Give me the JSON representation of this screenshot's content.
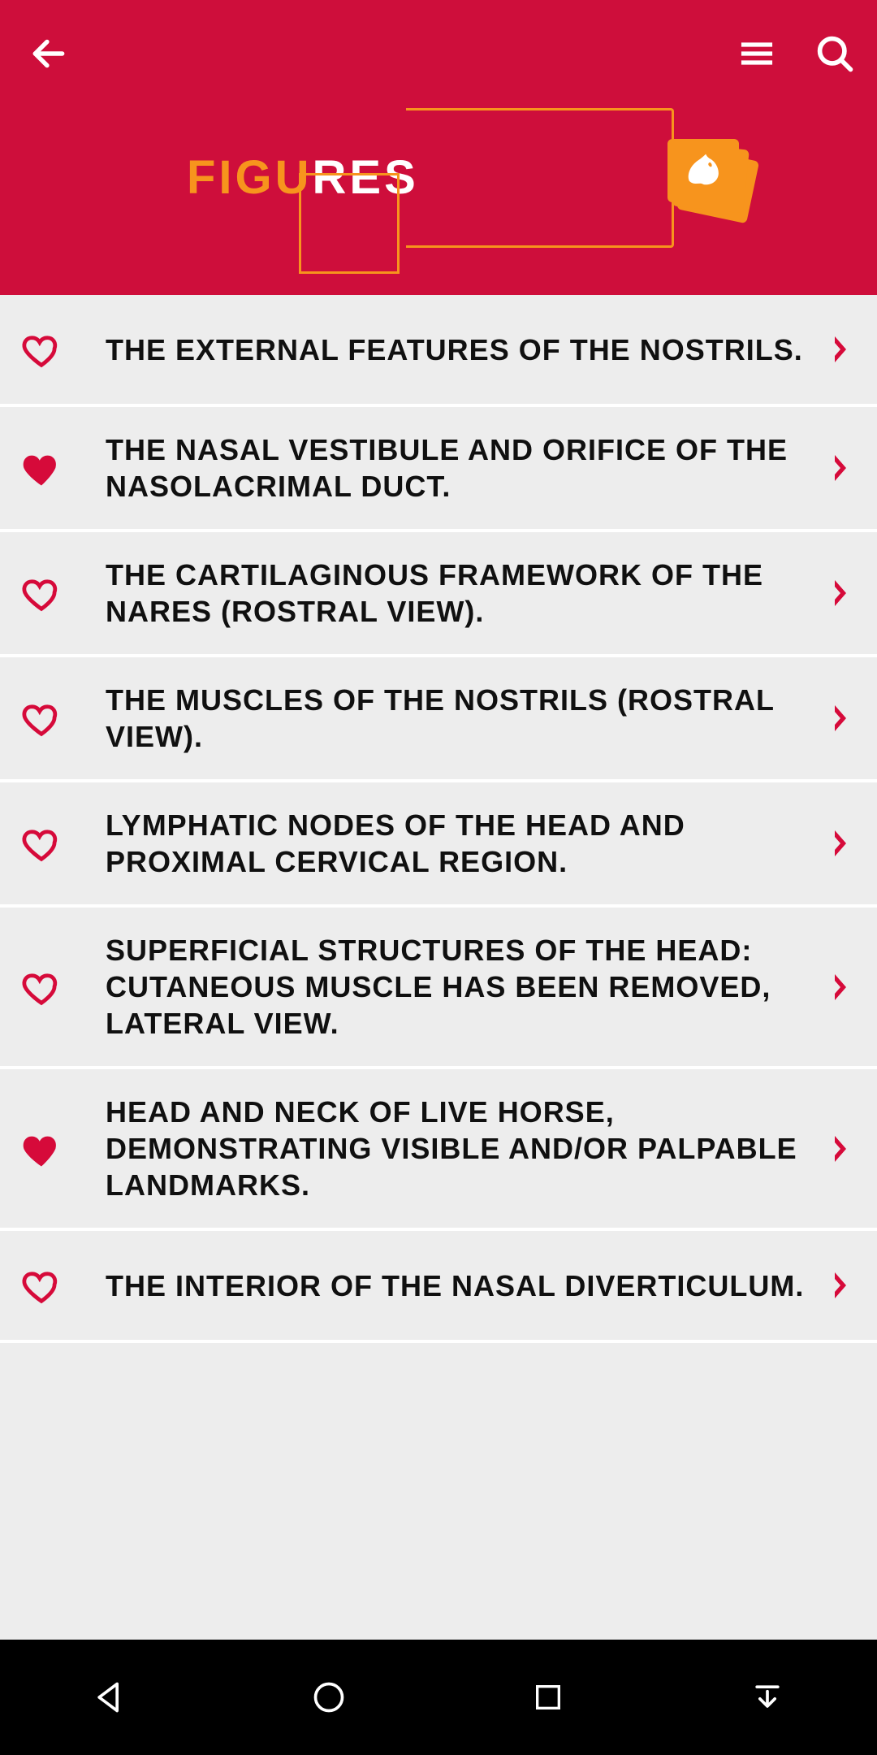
{
  "colors": {
    "header_bg": "#ce0e3b",
    "accent_red": "#d60a3a",
    "orange": "#f7941d",
    "list_bg": "#ededed",
    "row_divider": "#ffffff",
    "text": "#101010",
    "navbar_bg": "#000000",
    "nav_icon": "#ffffff"
  },
  "logo": {
    "part1": "FIGU",
    "part2": "RES"
  },
  "items": [
    {
      "title": "The external features of the nostrils.",
      "favorited": false
    },
    {
      "title": "The nasal vestibule and orifice of the nasolacrimal duct.",
      "favorited": true
    },
    {
      "title": "The cartilaginous framework of the nares (rostral view).",
      "favorited": false
    },
    {
      "title": "The muscles of the nostrils (rostral view).",
      "favorited": false
    },
    {
      "title": "Lymphatic nodes of the head and proximal cervical region.",
      "favorited": false
    },
    {
      "title": "Superficial structures of the head: cutaneous muscle has been removed, lateral view.",
      "favorited": false
    },
    {
      "title": "Head and neck of live horse, demonstrating visible and/or palpable landmarks.",
      "favorited": true
    },
    {
      "title": "The interior of the nasal diverticulum.",
      "favorited": false
    }
  ]
}
